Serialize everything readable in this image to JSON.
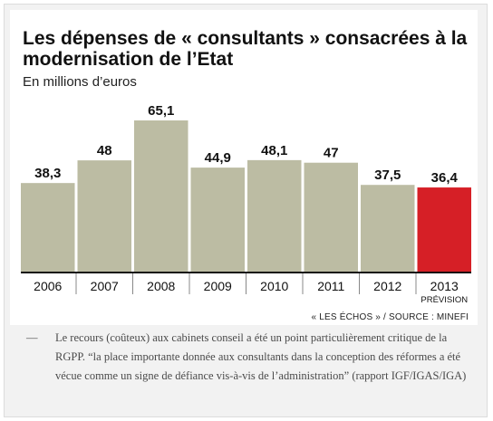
{
  "title": "Les dépenses de « consultants » consacrées à la modernisation de l’Etat",
  "subtitle": "En millions d’euros",
  "source": "« LES ÉCHOS » / SOURCE : MINEFI",
  "caption": {
    "dash": "—",
    "text": "Le recours (coûteux) aux cabinets conseil a été un point particulièrement critique de la RGPP. “la place importante donnée aux consultants dans la conception des réformes a été vécue comme un signe de défiance vis-à-vis de l’administration” (rapport IGF/IGAS/IGA)"
  },
  "colors": {
    "bar": "#bcbca3",
    "highlight": "#d61f26",
    "axis": "#111111"
  },
  "chart_data": {
    "type": "bar",
    "categories": [
      "2006",
      "2007",
      "2008",
      "2009",
      "2010",
      "2011",
      "2012",
      "2013"
    ],
    "category_sublabels": [
      "",
      "",
      "",
      "",
      "",
      "",
      "",
      "PRÉVISION"
    ],
    "values": [
      38.3,
      48,
      65.1,
      44.9,
      48.1,
      47,
      37.5,
      36.4
    ],
    "value_labels": [
      "38,3",
      "48",
      "65,1",
      "44,9",
      "48,1",
      "47",
      "37,5",
      "36,4"
    ],
    "highlight": [
      false,
      false,
      false,
      false,
      false,
      false,
      false,
      true
    ],
    "title": "Les dépenses de « consultants » consacrées à la modernisation de l’Etat",
    "ylabel": "En millions d’euros",
    "ylim": [
      0,
      65.1
    ],
    "grid": false
  }
}
